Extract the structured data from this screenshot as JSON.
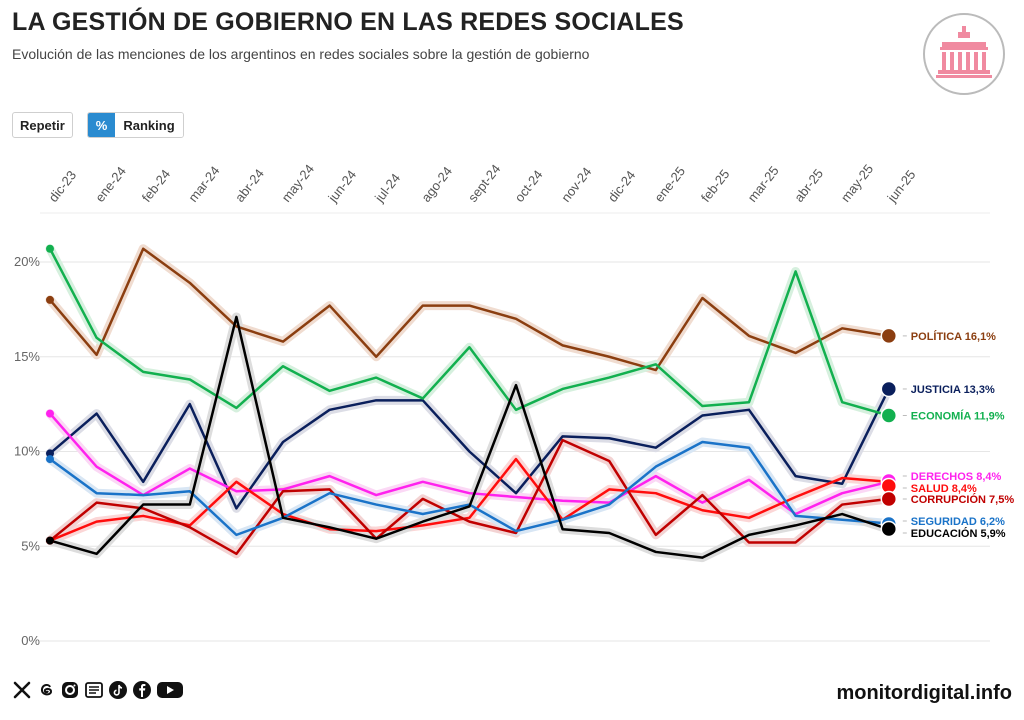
{
  "header": {
    "title": "LA GESTIÓN DE GOBIERNO EN LAS REDES SOCIALES",
    "subtitle": "Evolución de las menciones de los argentinos en redes sociales sobre la gestión de gobierno"
  },
  "controls": {
    "repeat_label": "Repetir",
    "percent_label": "%",
    "ranking_label": "Ranking"
  },
  "footer": {
    "site": "monitordigital.info",
    "social_icons": [
      "x-icon",
      "threads-icon",
      "instagram-icon",
      "newspaper-icon",
      "tiktok-icon",
      "facebook-icon",
      "youtube-icon"
    ]
  },
  "chart_data": {
    "type": "line",
    "title": "LA GESTIÓN DE GOBIERNO EN LAS REDES SOCIALES",
    "xlabel": "",
    "ylabel": "",
    "ylim": [
      0,
      22
    ],
    "yticks": [
      0,
      5,
      10,
      15,
      20
    ],
    "ytick_labels": [
      "0%",
      "5%",
      "10%",
      "15%",
      "20%"
    ],
    "grid": true,
    "legend": "right end labels",
    "categories": [
      "dic-23",
      "ene-24",
      "feb-24",
      "mar-24",
      "abr-24",
      "may-24",
      "jun-24",
      "jul-24",
      "ago-24",
      "sept-24",
      "oct-24",
      "nov-24",
      "dic-24",
      "ene-25",
      "feb-25",
      "mar-25",
      "abr-25",
      "may-25",
      "jun-25"
    ],
    "series": [
      {
        "name": "POLÍTICA",
        "end_label": "POLÍTICA 16,1%",
        "color": "#8B3E10",
        "halo": "#f0dcd0",
        "values": [
          18.0,
          15.1,
          20.7,
          18.9,
          16.6,
          15.8,
          17.7,
          15.0,
          17.7,
          17.7,
          17.0,
          15.6,
          15.0,
          14.3,
          18.1,
          16.1,
          15.2,
          16.5,
          16.1
        ]
      },
      {
        "name": "JUSTICIA",
        "end_label": "JUSTICIA 13,3%",
        "color": "#0A1F5C",
        "halo": "#dcdde6",
        "values": [
          9.9,
          12.0,
          8.4,
          12.5,
          7.0,
          10.5,
          12.2,
          12.7,
          12.7,
          10.0,
          7.8,
          10.8,
          10.7,
          10.2,
          11.9,
          12.2,
          8.7,
          8.3,
          13.3
        ]
      },
      {
        "name": "ECONOMÍA",
        "end_label": "ECONOMÍA 11,9%",
        "color": "#12B04F",
        "halo": "#d6f0de",
        "values": [
          20.7,
          16.0,
          14.2,
          13.8,
          12.3,
          14.5,
          13.2,
          13.9,
          12.8,
          15.5,
          12.2,
          13.3,
          13.9,
          14.6,
          12.4,
          12.6,
          19.5,
          12.6,
          11.9
        ]
      },
      {
        "name": "DERECHOS",
        "end_label": "DERECHOS 8,4%",
        "color": "#FF22EE",
        "halo": "#fbd8f5",
        "values": [
          12.0,
          9.2,
          7.7,
          9.1,
          7.9,
          8.0,
          8.7,
          7.7,
          8.4,
          7.8,
          7.6,
          7.4,
          7.3,
          8.7,
          7.3,
          8.5,
          6.7,
          7.8,
          8.4
        ]
      },
      {
        "name": "SALUD",
        "end_label": "SALUD 8,4%",
        "color": "#FF0D0D",
        "halo": "#fbd6d6",
        "values": [
          5.3,
          6.3,
          6.6,
          6.1,
          8.4,
          6.7,
          5.9,
          5.8,
          6.1,
          6.5,
          9.6,
          6.4,
          8.0,
          7.8,
          6.9,
          6.5,
          7.6,
          8.6,
          8.4
        ]
      },
      {
        "name": "CORRUPCIÓN",
        "end_label": "CORRUPCIÓN 7,5%",
        "color": "#C00000",
        "halo": "#f3d3d3",
        "values": [
          5.3,
          7.3,
          7.0,
          6.0,
          4.6,
          7.9,
          8.0,
          5.4,
          7.5,
          6.3,
          5.7,
          10.6,
          9.5,
          5.6,
          7.7,
          5.2,
          5.2,
          7.2,
          7.5
        ]
      },
      {
        "name": "SEGURIDAD",
        "end_label": "SEGURIDAD 6,2%",
        "color": "#1A73C8",
        "halo": "#d8e6f4",
        "values": [
          9.6,
          7.8,
          7.7,
          7.9,
          5.6,
          6.5,
          7.8,
          7.2,
          6.7,
          7.2,
          5.8,
          6.4,
          7.2,
          9.2,
          10.5,
          10.2,
          6.6,
          6.4,
          6.2
        ]
      },
      {
        "name": "EDUCACIÓN",
        "end_label": "EDUCACIÓN 5,9%",
        "color": "#000000",
        "halo": "#dddddd",
        "values": [
          5.3,
          4.6,
          7.2,
          7.2,
          17.1,
          6.5,
          6.0,
          5.4,
          6.3,
          7.1,
          13.5,
          5.9,
          5.7,
          4.7,
          4.4,
          5.6,
          6.1,
          6.7,
          5.9
        ]
      }
    ]
  }
}
